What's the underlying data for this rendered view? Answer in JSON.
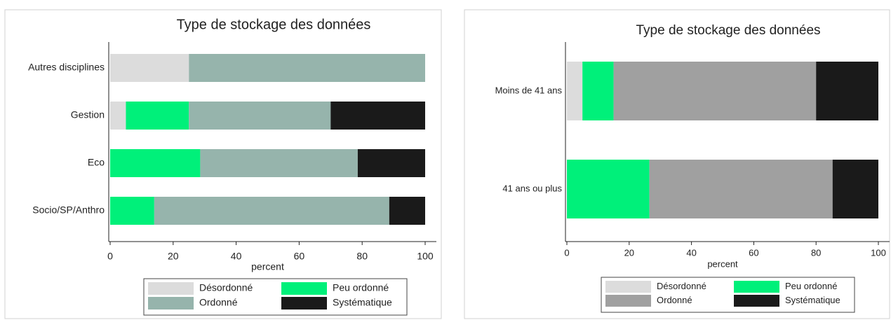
{
  "chart_data": [
    {
      "type": "bar",
      "orientation": "horizontal",
      "stacked": true,
      "title": "Type de stockage des données",
      "categories": [
        "Autres disciplines",
        "Gestion",
        "Eco",
        "Socio/SP/Anthro"
      ],
      "series": [
        {
          "name": "Désordonné",
          "color": "#dcdcdc",
          "values": [
            25,
            5,
            0,
            0
          ]
        },
        {
          "name": "Peu ordonné",
          "color": "#00f07a",
          "values": [
            0,
            20,
            28.6,
            14
          ]
        },
        {
          "name": "Ordonné",
          "color": "#96b4ac",
          "values": [
            75,
            45,
            50,
            74.6
          ]
        },
        {
          "name": "Systématique",
          "color": "#1a1a1a",
          "values": [
            0,
            30,
            21.4,
            11.4
          ]
        }
      ],
      "xlim": [
        0,
        100
      ],
      "xticks": [
        0,
        20,
        40,
        60,
        80,
        100
      ],
      "xlabel": "percent"
    },
    {
      "type": "bar",
      "orientation": "horizontal",
      "stacked": true,
      "title": "Type de stockage des données",
      "categories": [
        "Moins de 41 ans",
        "41 ans ou plus"
      ],
      "series": [
        {
          "name": "Désordonné",
          "color": "#dcdcdc",
          "values": [
            5,
            0
          ]
        },
        {
          "name": "Peu ordonné",
          "color": "#00f07a",
          "values": [
            10,
            26.5
          ]
        },
        {
          "name": "Ordonné",
          "color": "#a0a0a0",
          "values": [
            65,
            58.8
          ]
        },
        {
          "name": "Systématique",
          "color": "#1a1a1a",
          "values": [
            20,
            14.7
          ]
        }
      ],
      "xlim": [
        0,
        100
      ],
      "xticks": [
        0,
        20,
        40,
        60,
        80,
        100
      ],
      "xlabel": "percent"
    }
  ]
}
